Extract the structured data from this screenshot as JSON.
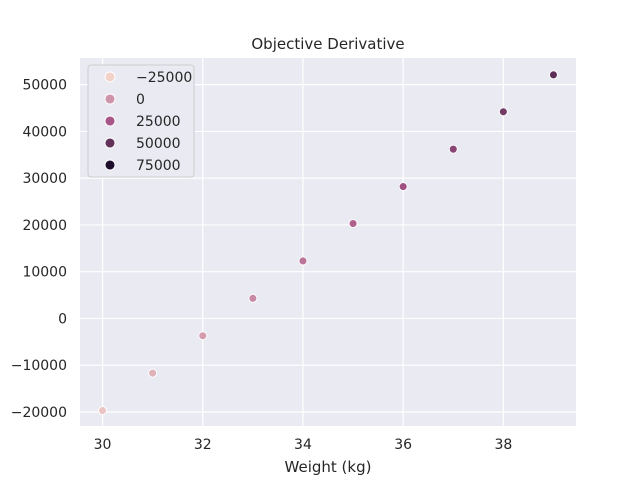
{
  "chart_data": {
    "type": "scatter",
    "title": "Objective Derivative",
    "xlabel": "Weight (kg)",
    "ylabel": "",
    "xlim": [
      29.55,
      39.45
    ],
    "ylim": [
      -23000,
      55700
    ],
    "xticks": [
      30,
      32,
      34,
      36,
      38
    ],
    "yticks": [
      -20000,
      -10000,
      0,
      10000,
      20000,
      30000,
      40000,
      50000
    ],
    "grid": true,
    "legend_placement": "top-left",
    "hue_range": [
      -25000,
      75000
    ],
    "legend": [
      {
        "label": "−25000",
        "hue": -25000
      },
      {
        "label": "0",
        "hue": 0
      },
      {
        "label": "25000",
        "hue": 25000
      },
      {
        "label": "50000",
        "hue": 50000
      },
      {
        "label": "75000",
        "hue": 75000
      }
    ],
    "points": [
      {
        "x": 30,
        "y": -19700
      },
      {
        "x": 31,
        "y": -11700
      },
      {
        "x": 32,
        "y": -3700
      },
      {
        "x": 33,
        "y": 4300
      },
      {
        "x": 34,
        "y": 12300
      },
      {
        "x": 35,
        "y": 20300
      },
      {
        "x": 36,
        "y": 28200
      },
      {
        "x": 37,
        "y": 36200
      },
      {
        "x": 38,
        "y": 44200
      },
      {
        "x": 39,
        "y": 52100
      }
    ],
    "colors": {
      "plot_bg": "#eaeaf2",
      "grid": "#ffffff",
      "text": "#262626",
      "hue_low": "#f3d2ca",
      "hue_mid": "#a85587",
      "hue_high": "#1e0f2d"
    }
  }
}
